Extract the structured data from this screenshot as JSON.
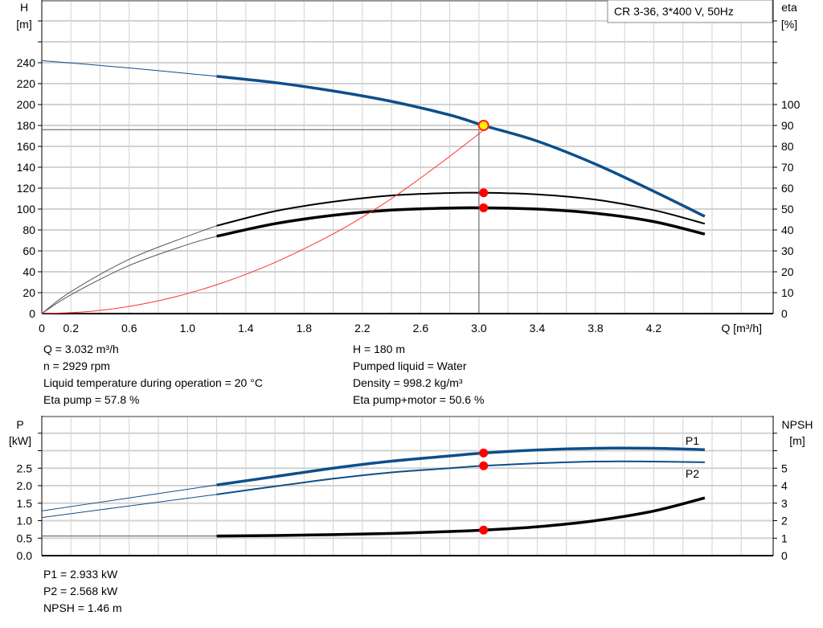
{
  "chart_data": [
    {
      "type": "line",
      "legend_box": "CR 3-36, 3*400 V, 50Hz",
      "xlabel": "Q [m³/h]",
      "ylabel_left": [
        "H",
        "[m]"
      ],
      "ylabel_right": [
        "eta",
        "[%]"
      ],
      "xlim": [
        0,
        5.0
      ],
      "ylim_left": [
        0,
        300
      ],
      "ylim_right": [
        0,
        150
      ],
      "x_ticks": [
        "0",
        "0.2",
        "0.6",
        "1.0",
        "1.4",
        "1.8",
        "2.2",
        "2.6",
        "3.0",
        "3.4",
        "3.8",
        "4.2"
      ],
      "y_ticks_left": [
        0,
        20,
        40,
        60,
        80,
        100,
        120,
        140,
        160,
        180,
        200,
        220,
        240
      ],
      "y_ticks_right": [
        0,
        10,
        20,
        30,
        40,
        50,
        60,
        70,
        80,
        90,
        100
      ],
      "grid": true,
      "series": [
        {
          "id": "H",
          "axis": "left",
          "color": "#0d4f8b",
          "thin_until": 1.2,
          "x": [
            0,
            0.6,
            1.2,
            1.6,
            2.0,
            2.4,
            2.8,
            3.03,
            3.4,
            3.8,
            4.2,
            4.55
          ],
          "y": [
            242,
            235,
            227,
            221,
            213,
            203,
            190,
            180,
            165,
            143,
            117,
            93
          ]
        },
        {
          "id": "eta-pump",
          "axis": "right",
          "color": "#000000",
          "thin_until": 1.2,
          "x": [
            0,
            0.2,
            0.6,
            1.0,
            1.2,
            1.6,
            2.0,
            2.4,
            2.8,
            3.03,
            3.4,
            3.8,
            4.2,
            4.55
          ],
          "y": [
            0,
            10.5,
            26,
            37,
            42,
            49,
            53.5,
            56.5,
            57.7,
            57.8,
            57,
            54.5,
            49.5,
            43
          ]
        },
        {
          "id": "eta-pump-motor",
          "axis": "right",
          "color": "#000000",
          "thin_until": 1.2,
          "x": [
            0,
            0.2,
            0.6,
            1.0,
            1.2,
            1.6,
            2.0,
            2.4,
            2.8,
            3.03,
            3.4,
            3.8,
            4.2,
            4.55
          ],
          "y": [
            0,
            9,
            23,
            33,
            37,
            43,
            47,
            49.5,
            50.5,
            50.6,
            50,
            48,
            44,
            38
          ]
        },
        {
          "id": "system",
          "axis": "left",
          "color": "#ff3030",
          "x": [
            0,
            0.3,
            0.6,
            0.9,
            1.2,
            1.5,
            1.8,
            2.1,
            2.4,
            2.7,
            3.0,
            3.03
          ],
          "y": [
            0,
            1.7,
            6.9,
            15.5,
            27.6,
            43,
            62,
            84,
            110,
            140,
            172,
            176
          ]
        }
      ],
      "operating_point": {
        "Q": 3.032,
        "H": 180,
        "eta_pump": 57.8,
        "eta_pump_motor": 50.6,
        "line_Q": 3.0,
        "line_H": 176
      }
    },
    {
      "type": "line",
      "ylabel_left": [
        "P",
        "[kW]"
      ],
      "ylabel_right": [
        "NPSH",
        "[m]"
      ],
      "xlim": [
        0,
        5.0
      ],
      "ylim_left": [
        0,
        4.0
      ],
      "ylim_right": [
        0,
        8
      ],
      "y_ticks_left": [
        "0.0",
        "0.5",
        "1.0",
        "1.5",
        "2.0",
        "2.5"
      ],
      "y_ticks_right": [
        "0",
        "1",
        "2",
        "3",
        "4",
        "5"
      ],
      "grid": true,
      "series": [
        {
          "name": "P1",
          "axis": "left",
          "color": "#0d4f8b",
          "thin_until": 1.2,
          "x": [
            0,
            0.6,
            1.2,
            1.6,
            2.0,
            2.4,
            2.8,
            3.03,
            3.4,
            3.8,
            4.2,
            4.55
          ],
          "y": [
            1.28,
            1.65,
            2.02,
            2.26,
            2.5,
            2.7,
            2.85,
            2.933,
            3.02,
            3.07,
            3.07,
            3.03
          ]
        },
        {
          "name": "P2",
          "axis": "left",
          "color": "#0d4f8b",
          "thin_until": 1.2,
          "x": [
            0,
            0.6,
            1.2,
            1.6,
            2.0,
            2.4,
            2.8,
            3.03,
            3.4,
            3.8,
            4.2,
            4.55
          ],
          "y": [
            1.09,
            1.42,
            1.75,
            1.98,
            2.2,
            2.38,
            2.5,
            2.568,
            2.64,
            2.69,
            2.69,
            2.67
          ]
        },
        {
          "id": "NPSH",
          "axis": "right",
          "color": "#000000",
          "thin_until": 1.2,
          "x": [
            0,
            1.2,
            1.6,
            2.0,
            2.4,
            2.8,
            3.03,
            3.4,
            3.8,
            4.2,
            4.55
          ],
          "y": [
            1.12,
            1.12,
            1.15,
            1.2,
            1.27,
            1.38,
            1.46,
            1.65,
            2.0,
            2.55,
            3.3
          ]
        }
      ],
      "operating_point": {
        "Q": 3.032,
        "P1": 2.933,
        "P2": 2.568,
        "NPSH": 1.46
      }
    }
  ],
  "info_top": {
    "left": [
      "Q = 3.032 m³/h",
      "n = 2929 rpm",
      "Liquid temperature during operation = 20 °C",
      "Eta pump = 57.8 %"
    ],
    "right": [
      "H = 180 m",
      "Pumped liquid = Water",
      "Density = 998.2 kg/m³",
      "Eta pump+motor = 50.6 %"
    ]
  },
  "info_bottom": [
    "P1 = 2.933 kW",
    "P2 = 2.568 kW",
    "NPSH = 1.46 m"
  ]
}
